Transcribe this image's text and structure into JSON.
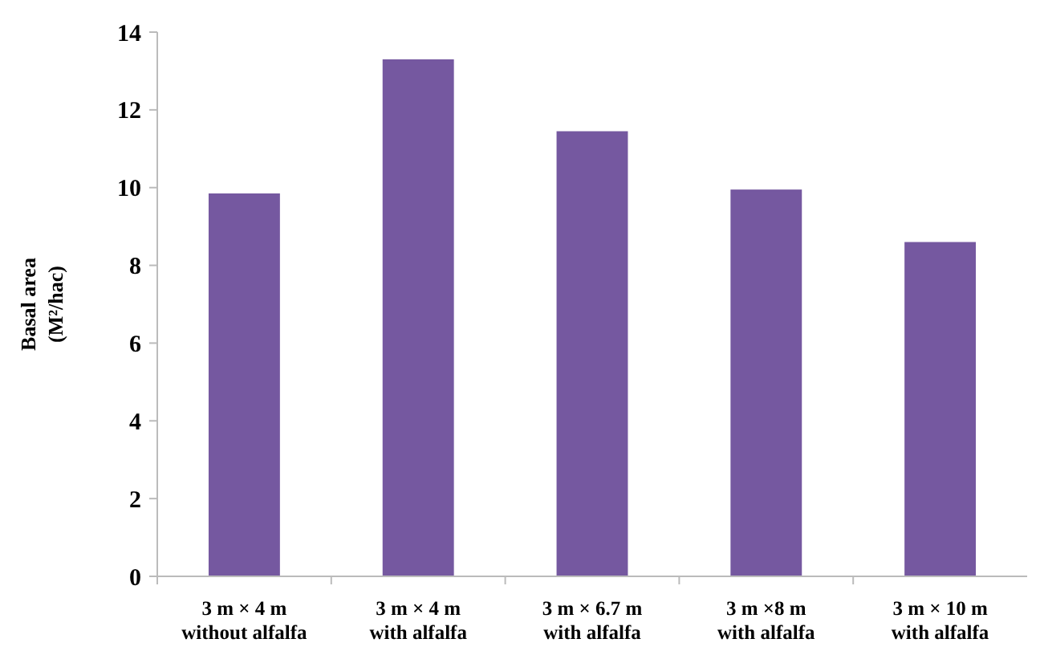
{
  "chart_data": {
    "type": "bar",
    "ylabel": "Basal area\n(M²/hac)",
    "categories": [
      "3 m × 4 m\nwithout alfalfa",
      "3 m × 4 m\nwith alfalfa",
      "3 m × 6.7 m\nwith alfalfa",
      "3 m ×8 m\nwith alfalfa",
      "3 m × 10 m\nwith alfalfa"
    ],
    "values": [
      9.85,
      13.3,
      11.45,
      9.95,
      8.6
    ],
    "color": "#7558a0",
    "ylim": [
      0,
      14
    ],
    "yticks": [
      0,
      2,
      4,
      6,
      8,
      10,
      12,
      14
    ],
    "grid": false
  }
}
